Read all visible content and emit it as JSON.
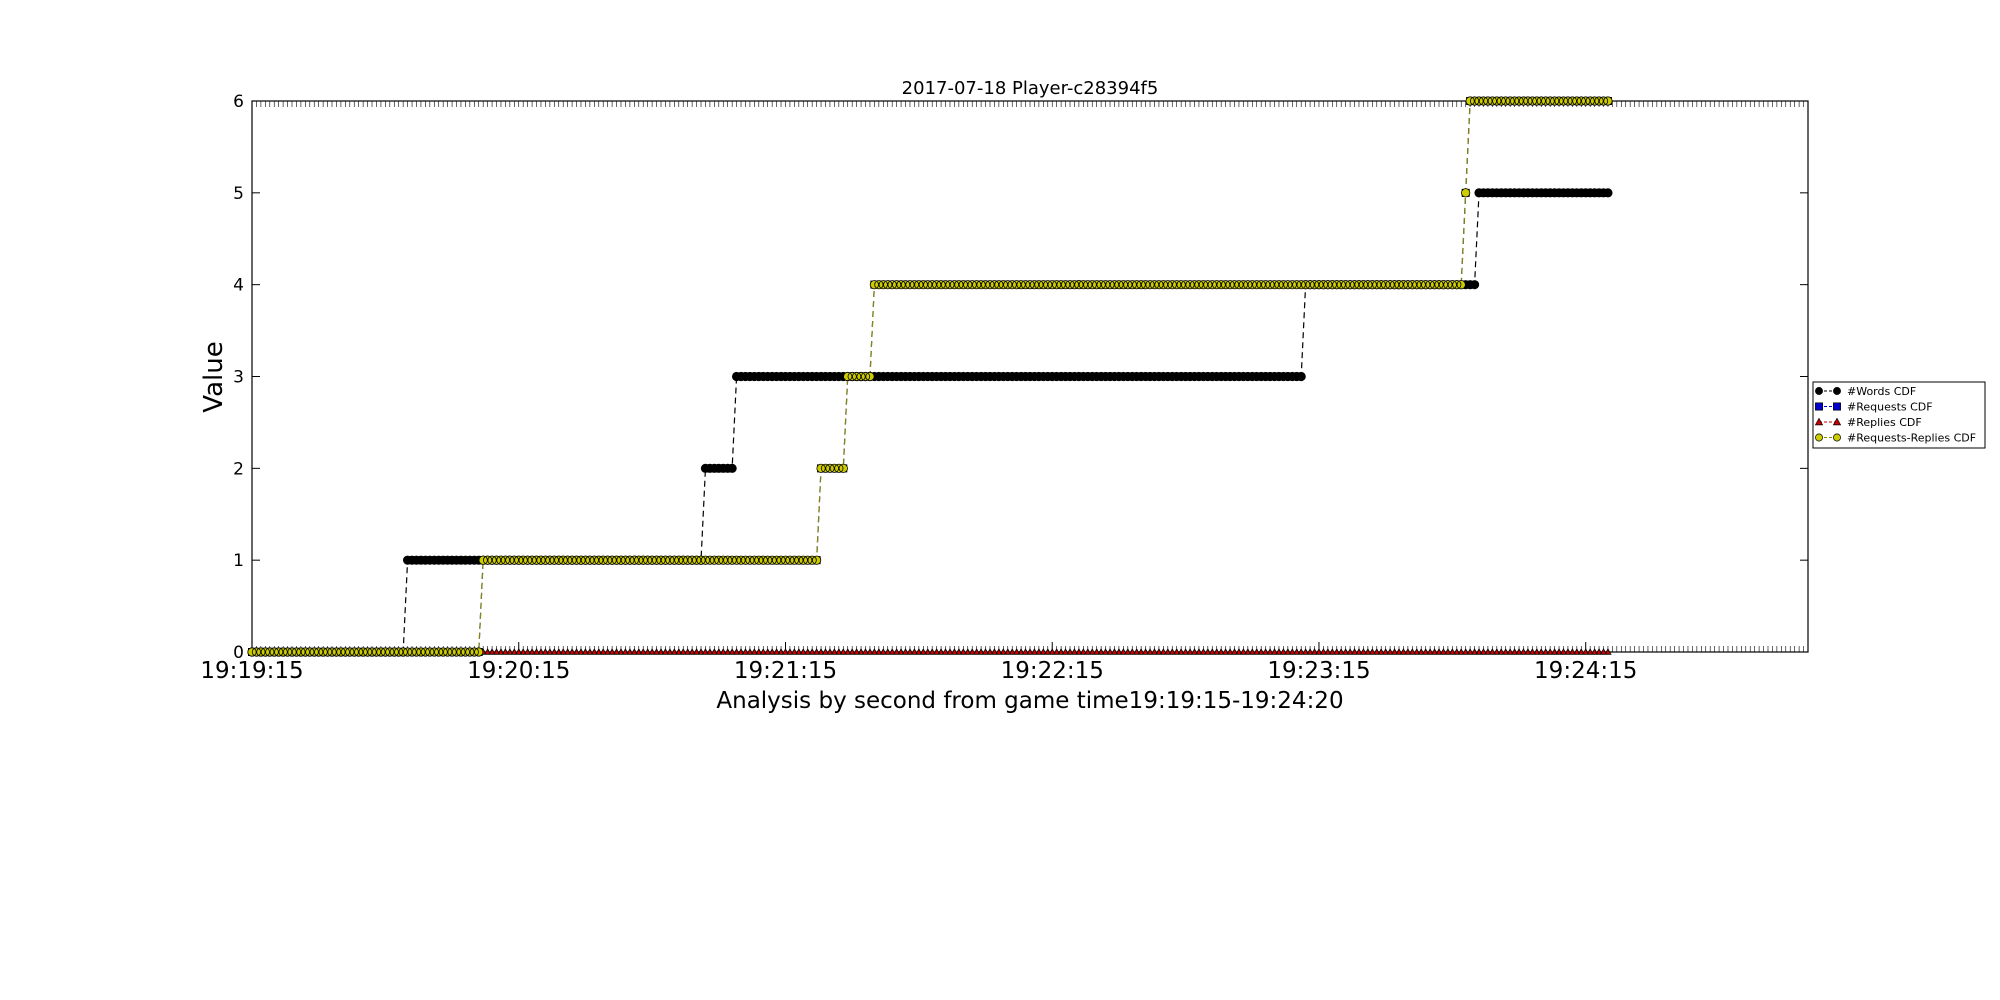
{
  "chart_data": {
    "type": "line",
    "title": "2017-07-18 Player-c28394f5",
    "xlabel": "Analysis by second from game time19:19:15-19:24:20",
    "ylabel": "Value",
    "x_range_seconds": [
      0,
      350
    ],
    "ylim": [
      0,
      6
    ],
    "x_tick_labels": [
      "19:19:15",
      "19:20:15",
      "19:21:15",
      "19:22:15",
      "19:23:15",
      "19:24:15"
    ],
    "x_tick_seconds": [
      0,
      60,
      120,
      180,
      240,
      300
    ],
    "y_ticks": [
      0,
      1,
      2,
      3,
      4,
      5,
      6
    ],
    "grid": false,
    "legend_position": "right",
    "series": [
      {
        "name": "#Words CDF",
        "color": "#000000",
        "marker": "circle",
        "steps": [
          [
            0,
            0
          ],
          [
            35,
            1
          ],
          [
            102,
            2
          ],
          [
            109,
            3
          ],
          [
            237,
            4
          ],
          [
            276,
            5
          ]
        ],
        "x_end": 305
      },
      {
        "name": "#Requests CDF",
        "color": "#0000cc",
        "marker": "square",
        "steps": [
          [
            0,
            0
          ],
          [
            52,
            1
          ],
          [
            128,
            2
          ],
          [
            134,
            3
          ],
          [
            140,
            4
          ],
          [
            273,
            5
          ],
          [
            274,
            6
          ]
        ],
        "x_end": 305
      },
      {
        "name": "#Replies CDF",
        "color": "#cc0000",
        "marker": "triangle",
        "steps": [
          [
            0,
            0
          ]
        ],
        "x_end": 305
      },
      {
        "name": "#Requests-Replies CDF",
        "color": "#cccc00",
        "marker": "circle",
        "steps": [
          [
            0,
            0
          ],
          [
            52,
            1
          ],
          [
            128,
            2
          ],
          [
            134,
            3
          ],
          [
            140,
            4
          ],
          [
            273,
            5
          ],
          [
            274,
            6
          ]
        ],
        "x_end": 305
      }
    ]
  }
}
